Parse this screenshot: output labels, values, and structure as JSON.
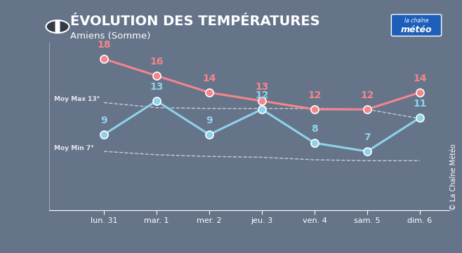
{
  "chart_data": {
    "type": "line",
    "title": "ÉVOLUTION DES TEMPÉRATURES",
    "subtitle": "Amiens (Somme)",
    "logo": [
      "la chaîne",
      "météo"
    ],
    "credit": "© La Chaîne Météo",
    "categories": [
      "lun. 31",
      "mar. 1",
      "mer. 2",
      "jeu. 3",
      "ven. 4",
      "sam. 5",
      "dim. 6"
    ],
    "series": [
      {
        "color": "#f4868a",
        "marker": "o",
        "line_style": "solid",
        "data_labels": true,
        "values": [
          18,
          16,
          14,
          13,
          12,
          12,
          14
        ]
      },
      {
        "color": "#8fd3ea",
        "marker": "o",
        "line_style": "solid",
        "data_labels": true,
        "values": [
          9,
          13,
          9,
          12,
          8,
          7,
          11
        ]
      },
      {
        "name": "Moy Max 13°",
        "color": "#c8ccd4",
        "line_style": "dashed",
        "data_labels": false,
        "values": [
          12.8,
          12.2,
          12.1,
          12.1,
          12.1,
          12.0,
          10.9
        ]
      },
      {
        "name": "Moy Min 7°",
        "color": "#c8ccd4",
        "line_style": "dashed",
        "data_labels": false,
        "values": [
          7.0,
          6.6,
          6.4,
          6.3,
          6.0,
          5.9,
          5.9
        ]
      }
    ],
    "ylim": [
      0,
      20
    ],
    "yticks": [],
    "tick_labels": "x",
    "grid": false
  }
}
